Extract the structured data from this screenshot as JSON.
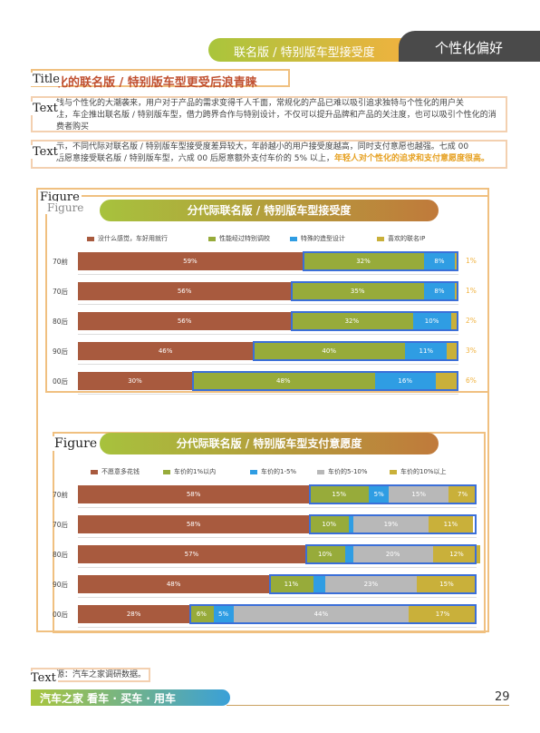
{
  "header": {
    "section": "联名版 / 特别版车型接受度",
    "chapter": "个性化偏好"
  },
  "layout_tags": {
    "title": "Title",
    "text": "Text",
    "figure": "Figure"
  },
  "title": "化的联名版 / 特别版车型更受后浪青睐",
  "para1": {
    "line1": "钱与个性化的大潮袭来，用户对于产品的需求变得千人千面，常规化的产品已难以吸引追求独特与个性化的用户关",
    "line2": "注，车企推出联名版 / 特别版车型，借力跨界合作与特别设计，不仅可以提升品牌和产品的关注度，也可以吸引个性化的消",
    "line3": "费者购买"
  },
  "para2": {
    "line1": "示，不同代际对联名版 / 特别版车型接受度差异较大，年龄越小的用户接受度越高，同时支付意愿也越强。七成 00",
    "line2a": "后愿意接受联名版 / 特别版车型，六成 00 后愿意额外支付车价的 5% 以上，",
    "line2b": "年轻人对个性化的追求和支付意愿度很高。"
  },
  "fig1": {
    "title": "分代际联名版 / 特别版车型接受度",
    "cut_label": "Figure"
  },
  "fig2": {
    "title": "分代际联名版 / 特别版车型支付意愿度"
  },
  "chart_data": [
    {
      "type": "bar",
      "stacked": true,
      "orientation": "horizontal",
      "title": "分代际联名版 / 特别版车型接受度",
      "categories": [
        "70前",
        "70后",
        "80后",
        "90后",
        "00后"
      ],
      "series": [
        {
          "name": "没什么感觉，车好用就行",
          "color": "#a85a3e",
          "values": [
            59,
            56,
            56,
            46,
            30
          ]
        },
        {
          "name": "性能经过特别调校",
          "color": "#97ab3a",
          "values": [
            32,
            35,
            32,
            40,
            48
          ]
        },
        {
          "name": "特殊的造型设计",
          "color": "#2f9de3",
          "values": [
            8,
            8,
            10,
            11,
            16
          ]
        },
        {
          "name": "喜欢的联名IP",
          "color": "#c9b03a",
          "values": [
            1,
            1,
            2,
            3,
            6
          ]
        }
      ],
      "labels": {
        "values": [
          [
            "59%",
            "32%",
            "8%",
            "1%"
          ],
          [
            "56%",
            "35%",
            "8%",
            "1%"
          ],
          [
            "56%",
            "32%",
            "10%",
            "2%"
          ],
          [
            "46%",
            "40%",
            "11%",
            "3%"
          ],
          [
            "30%",
            "48%",
            "16%",
            "6%"
          ]
        ]
      },
      "ylim": [
        0,
        100
      ]
    },
    {
      "type": "bar",
      "stacked": true,
      "orientation": "horizontal",
      "title": "分代际联名版 / 特别版车型支付意愿度",
      "categories": [
        "70前",
        "70后",
        "80后",
        "90后",
        "00后"
      ],
      "series": [
        {
          "name": "不愿意多花钱",
          "color": "#a85a3e",
          "values": [
            58,
            58,
            57,
            48,
            28
          ]
        },
        {
          "name": "车价的1%以内",
          "color": "#97ab3a",
          "values": [
            15,
            10,
            10,
            11,
            6
          ]
        },
        {
          "name": "车价的1-5%",
          "color": "#2f9de3",
          "values": [
            5,
            1,
            2,
            3,
            5
          ]
        },
        {
          "name": "车价的5-10%",
          "color": "#b8b8b8",
          "values": [
            15,
            19,
            20,
            23,
            44
          ]
        },
        {
          "name": "车价的10%以上",
          "color": "#c9b03a",
          "values": [
            7,
            11,
            12,
            15,
            17
          ]
        }
      ],
      "labels": {
        "values": [
          [
            "58%",
            "15%",
            "5%",
            "15%",
            "7%"
          ],
          [
            "58%",
            "10%",
            "1%",
            "19%",
            "11%"
          ],
          [
            "57%",
            "10%",
            "2%",
            "20%",
            "12%"
          ],
          [
            "48%",
            "11%",
            "3%",
            "23%",
            "15%"
          ],
          [
            "28%",
            "6%",
            "5%",
            "44%",
            "17%"
          ]
        ]
      },
      "ylim": [
        0,
        100
      ]
    }
  ],
  "source": "源：汽车之家调研数据。",
  "footer": {
    "brand": "汽车之家 看车 · 买车 · 用车",
    "page": "29"
  }
}
